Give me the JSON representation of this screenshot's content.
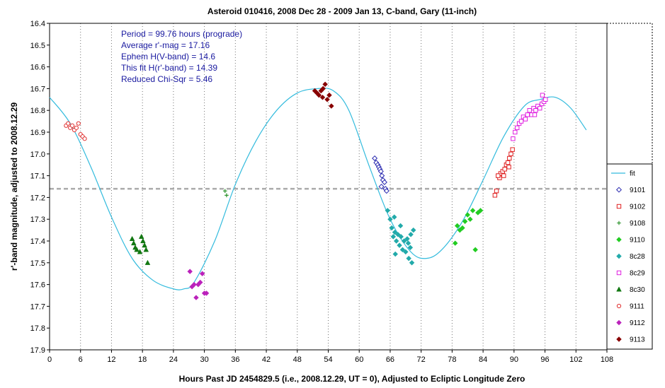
{
  "chart_data": {
    "type": "scatter",
    "title": "Asteroid 010416, 2008 Dec 28 - 2009 Jan 13, C-band, Gary (11-inch)",
    "xlabel": "Hours Past JD 2454829.5 (i.e., 2008.12.29, UT = 0), Adjusted to Ecliptic Longitude Zero",
    "ylabel": "r'-band magnitude, adjusted to 2008.12.29",
    "xlim": [
      0,
      108
    ],
    "ylim": [
      16.4,
      17.9
    ],
    "y_inverted": true,
    "xticks": [
      0,
      6,
      12,
      18,
      24,
      30,
      36,
      42,
      48,
      54,
      60,
      66,
      72,
      78,
      84,
      90,
      96,
      102,
      108
    ],
    "yticks": [
      16.4,
      16.5,
      16.6,
      16.7,
      16.8,
      16.9,
      17.0,
      17.1,
      17.2,
      17.3,
      17.4,
      17.5,
      17.6,
      17.7,
      17.8,
      17.9
    ],
    "ytick_labels": [
      "16.4",
      "16.5",
      "16.6",
      "16.7",
      "16.8",
      "16.9",
      "17.0",
      "17.1",
      "17.2",
      "17.3",
      "17.4",
      "17.5",
      "17.6",
      "17.7",
      "17.8",
      "17.9"
    ],
    "grid": "vertical dashed",
    "average_line": 17.16,
    "annotations": [
      "Period = 99.76 hours (prograde)",
      "Average r'-mag = 17.16",
      "Ephem H(V-band) = 14.6",
      "This fit H(r'-band) = 14.39",
      "Reduced Chi-Sqr = 5.46"
    ],
    "legend_position": "right",
    "fit": {
      "name": "fit",
      "color": "#33bbdd",
      "x": [
        0,
        4,
        8,
        12,
        16,
        20,
        24,
        26,
        28,
        32,
        36,
        40,
        44,
        48,
        52,
        55,
        58,
        62,
        66,
        70,
        73,
        76,
        80,
        84,
        88,
        92,
        95,
        98,
        101,
        104
      ],
      "y": [
        16.74,
        16.86,
        17.06,
        17.29,
        17.48,
        17.58,
        17.62,
        17.62,
        17.59,
        17.4,
        17.14,
        16.94,
        16.8,
        16.72,
        16.7,
        16.71,
        16.8,
        17.06,
        17.3,
        17.45,
        17.48,
        17.44,
        17.31,
        17.12,
        16.92,
        16.78,
        16.75,
        16.74,
        16.79,
        16.89
      ]
    },
    "series": [
      {
        "name": "9101",
        "marker": "diamond-open",
        "color": "#2a2ab0",
        "x": [
          63.0,
          63.3,
          63.6,
          63.8,
          64.0,
          64.2,
          64.4,
          64.6,
          64.9,
          65.1,
          64.3,
          65.3
        ],
        "y": [
          17.02,
          17.04,
          17.05,
          17.06,
          17.07,
          17.08,
          17.1,
          17.12,
          17.13,
          17.16,
          17.15,
          17.17
        ]
      },
      {
        "name": "9102",
        "marker": "square-open",
        "color": "#e02020",
        "x": [
          86.3,
          86.6,
          87.0,
          87.4,
          87.8,
          88.2,
          88.5,
          88.8,
          89.1,
          89.4,
          89.7,
          88.0,
          89.0,
          87.2,
          86.9
        ],
        "y": [
          17.19,
          17.17,
          17.1,
          17.09,
          17.08,
          17.07,
          17.05,
          17.04,
          17.02,
          17.0,
          16.98,
          17.1,
          17.06,
          17.11,
          17.1
        ]
      },
      {
        "name": "9108",
        "marker": "plus",
        "color": "#1a8a1a",
        "x": [
          34.0,
          34.3
        ],
        "y": [
          17.17,
          17.19
        ]
      },
      {
        "name": "9110",
        "marker": "diamond-filled",
        "color": "#22cc22",
        "x": [
          78.6,
          79.0,
          79.5,
          80.0,
          80.5,
          81.0,
          81.5,
          82.0,
          82.5,
          83.0,
          83.5
        ],
        "y": [
          17.41,
          17.33,
          17.35,
          17.34,
          17.31,
          17.28,
          17.3,
          17.26,
          17.44,
          17.27,
          17.26
        ]
      },
      {
        "name": "8c28",
        "marker": "diamond-filled",
        "color": "#22aaaa",
        "x": [
          65.5,
          66.0,
          66.3,
          66.6,
          66.9,
          67.2,
          67.5,
          67.8,
          68.1,
          68.4,
          68.7,
          69.0,
          69.3,
          69.6,
          69.9,
          70.2,
          70.5,
          67.0,
          68.0,
          69.5,
          70.0,
          66.8
        ],
        "y": [
          17.26,
          17.3,
          17.34,
          17.38,
          17.36,
          17.4,
          17.37,
          17.42,
          17.38,
          17.44,
          17.4,
          17.45,
          17.39,
          17.48,
          17.43,
          17.5,
          17.35,
          17.46,
          17.33,
          17.41,
          17.37,
          17.29
        ]
      },
      {
        "name": "8c29",
        "marker": "square-open",
        "color": "#e020e0",
        "x": [
          89.8,
          90.2,
          90.6,
          91.0,
          91.4,
          91.8,
          92.2,
          92.6,
          93.0,
          93.4,
          93.8,
          94.2,
          94.6,
          95.0,
          95.4,
          95.8,
          96.1,
          94.0,
          95.5
        ],
        "y": [
          16.93,
          16.9,
          16.88,
          16.86,
          16.85,
          16.83,
          16.84,
          16.82,
          16.8,
          16.82,
          16.79,
          16.8,
          16.78,
          16.79,
          16.77,
          16.76,
          16.75,
          16.82,
          16.73
        ]
      },
      {
        "name": "8c30",
        "marker": "triangle-filled",
        "color": "#117711",
        "x": [
          16.0,
          16.3,
          16.6,
          16.9,
          17.8,
          18.1,
          18.4,
          18.7,
          19.0,
          17.5
        ],
        "y": [
          17.39,
          17.41,
          17.43,
          17.44,
          17.38,
          17.4,
          17.42,
          17.44,
          17.5,
          17.45
        ]
      },
      {
        "name": "9111",
        "marker": "circle-open",
        "color": "#e03030",
        "x": [
          3.2,
          3.6,
          4.0,
          4.4,
          4.8,
          5.2,
          5.6,
          6.0,
          6.4,
          6.8
        ],
        "y": [
          16.87,
          16.86,
          16.88,
          16.87,
          16.89,
          16.88,
          16.86,
          16.91,
          16.92,
          16.93
        ]
      },
      {
        "name": "9112",
        "marker": "diamond-filled",
        "color": "#bb22bb",
        "x": [
          27.2,
          27.6,
          28.0,
          28.4,
          28.8,
          29.2,
          29.6,
          30.0,
          30.4
        ],
        "y": [
          17.54,
          17.61,
          17.6,
          17.66,
          17.6,
          17.59,
          17.55,
          17.64,
          17.64
        ]
      },
      {
        "name": "9113",
        "marker": "diamond-filled",
        "color": "#880000",
        "x": [
          51.4,
          51.8,
          52.2,
          52.6,
          53.0,
          53.4,
          53.8,
          54.2,
          54.6,
          52.9
        ],
        "y": [
          16.71,
          16.72,
          16.73,
          16.71,
          16.7,
          16.68,
          16.75,
          16.73,
          16.78,
          16.74
        ]
      }
    ]
  }
}
